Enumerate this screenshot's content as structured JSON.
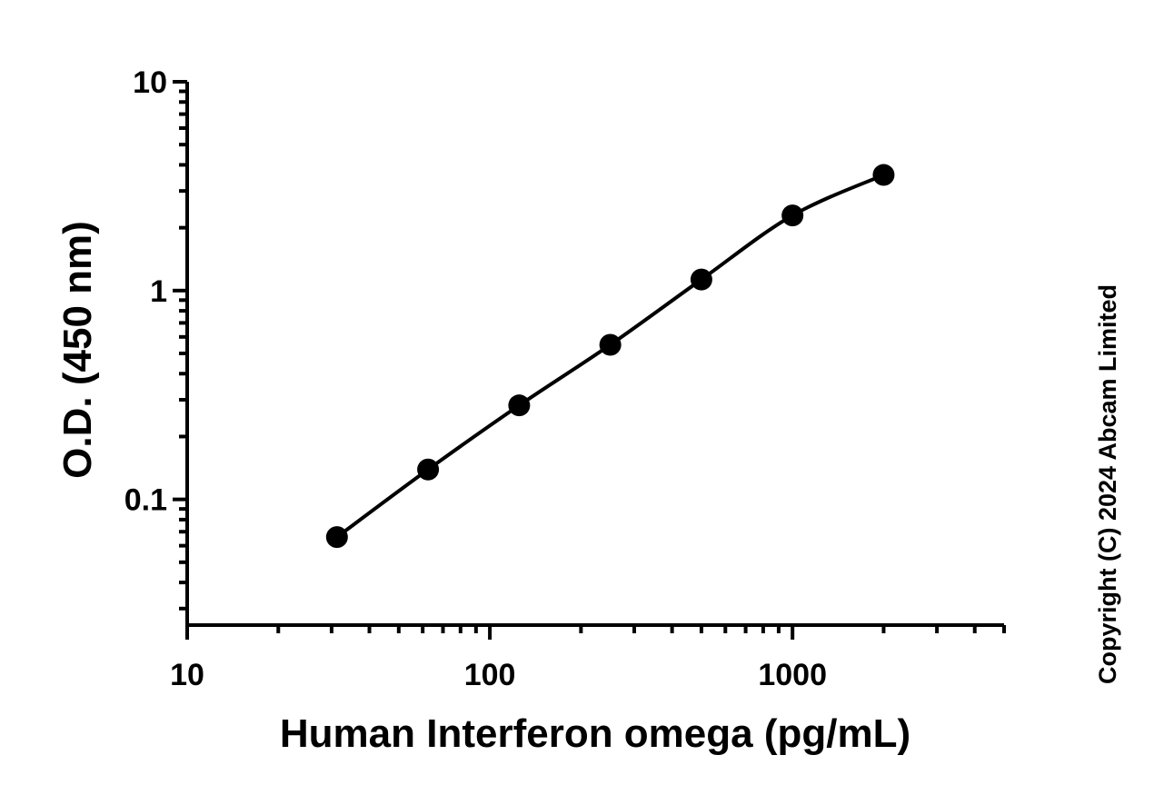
{
  "chart_data": {
    "type": "scatter",
    "title": "",
    "xlabel": "Human Interferon omega (pg/mL)",
    "ylabel": "O.D. (450 nm)",
    "xscale": "log",
    "yscale": "log",
    "xlim": [
      10,
      5000
    ],
    "ylim": [
      0.025,
      10
    ],
    "x_ticks": [
      {
        "value": 10,
        "label": "10"
      },
      {
        "value": 100,
        "label": "100"
      },
      {
        "value": 1000,
        "label": "1000"
      }
    ],
    "y_ticks": [
      {
        "value": 0.1,
        "label": "0.1"
      },
      {
        "value": 1,
        "label": "1"
      },
      {
        "value": 10,
        "label": "10"
      }
    ],
    "grid": false,
    "series": [
      {
        "x": [
          31.25,
          62.5,
          125,
          250,
          500,
          1000,
          2000
        ],
        "y": [
          0.066,
          0.139,
          0.282,
          0.55,
          1.13,
          2.29,
          3.58
        ],
        "color": "#000000",
        "fit_line": true
      }
    ],
    "annotation": "Copyright (C) 2024 Abcam Limited"
  }
}
